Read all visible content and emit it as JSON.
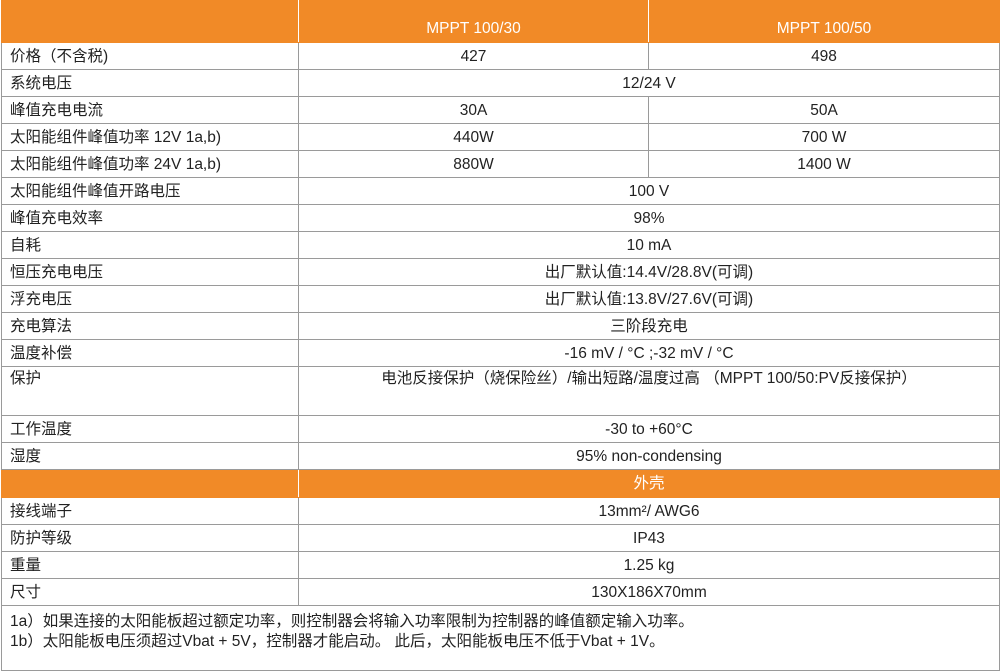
{
  "header": {
    "columns": [
      "MPPT 100/30",
      "MPPT 100/50"
    ]
  },
  "rows": [
    {
      "label": "价格（不含税)",
      "values": [
        "427",
        "498"
      ]
    },
    {
      "label": "系统电压",
      "values": [
        "12/24 V"
      ]
    },
    {
      "label": "峰值充电电流",
      "values": [
        "30A",
        "50A"
      ]
    },
    {
      "label": "太阳能组件峰值功率 12V 1a,b)",
      "values": [
        "440W",
        "700 W"
      ]
    },
    {
      "label": "太阳能组件峰值功率 24V 1a,b)",
      "values": [
        "880W",
        "1400 W"
      ]
    },
    {
      "label": "太阳能组件峰值开路电压",
      "values": [
        "100 V"
      ]
    },
    {
      "label": "峰值充电效率",
      "values": [
        "98%"
      ]
    },
    {
      "label": "自耗",
      "values": [
        "10 mA"
      ]
    },
    {
      "label": "恒压充电电压",
      "values": [
        "出厂默认值:14.4V/28.8V(可调)"
      ]
    },
    {
      "label": "浮充电压",
      "values": [
        "出厂默认值:13.8V/27.6V(可调)"
      ]
    },
    {
      "label": "充电算法",
      "values": [
        "三阶段充电"
      ]
    },
    {
      "label": "温度补偿",
      "values": [
        "-16 mV / °C ;-32 mV / °C"
      ]
    },
    {
      "label": "保护",
      "values": [
        "电池反接保护（烧保险丝）/输出短路/温度过高 （MPPT 100/50:PV反接保护）"
      ]
    },
    {
      "label": "工作温度",
      "values": [
        "-30 to +60°C"
      ]
    },
    {
      "label": "湿度",
      "values": [
        "95% non-condensing"
      ]
    }
  ],
  "section": {
    "title": "外壳",
    "rows": [
      {
        "label": "接线端子",
        "values": [
          "13mm²/ AWG6"
        ]
      },
      {
        "label": "防护等级",
        "values": [
          "IP43"
        ]
      },
      {
        "label": "重量",
        "values": [
          "1.25 kg"
        ]
      },
      {
        "label": "尺寸",
        "values": [
          "130X186X70mm"
        ]
      }
    ]
  },
  "footnotes": [
    "1a）如果连接的太阳能板超过额定功率，则控制器会将输入功率限制为控制器的峰值额定输入功率。",
    "1b）太阳能板电压须超过Vbat + 5V，控制器才能启动。 此后，太阳能板电压不低于Vbat + 1V。"
  ]
}
